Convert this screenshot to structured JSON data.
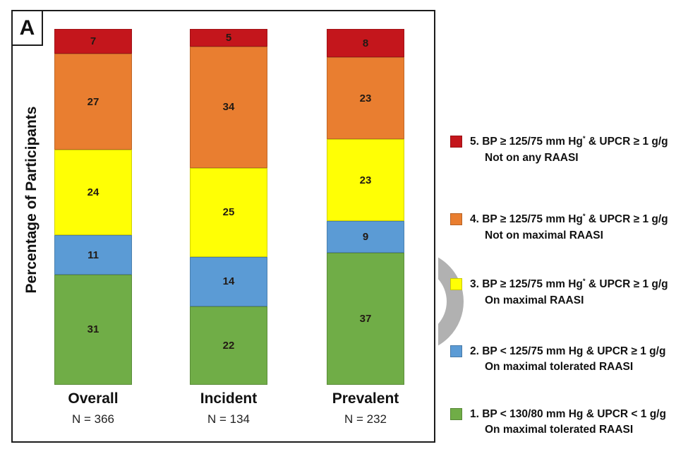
{
  "panel_label": "A",
  "ylabel": "Percentage of Participants",
  "colors": {
    "cat5_red": "#C4161C",
    "cat4_orange": "#E97E30",
    "cat3_yellow": "#FFFF05",
    "cat2_blue": "#5B9BD5",
    "cat1_green": "#70AD47",
    "watermark_gray": "#B1B1B1",
    "frame_black": "#1c1c1c"
  },
  "chart_data": {
    "type": "bar",
    "stacked": true,
    "categories": [
      "Overall",
      "Incident",
      "Prevalent"
    ],
    "category_sublabels": [
      "N = 366",
      "N = 134",
      "N = 232"
    ],
    "ylabel": "Percentage of Participants",
    "ylim": [
      0,
      100
    ],
    "grid": false,
    "legend_position": "right",
    "series_order_note": "listed top-to-bottom as stacked in each bar",
    "series": [
      {
        "name": "5. BP ≥ 125/75 mm Hg* & UPCR ≥ 1 g/g — Not on any RAASI",
        "color": "#C4161C",
        "values": [
          7,
          5,
          8
        ]
      },
      {
        "name": "4. BP ≥ 125/75 mm Hg* & UPCR ≥ 1 g/g — Not on maximal RAASI",
        "color": "#E97E30",
        "values": [
          27,
          34,
          23
        ]
      },
      {
        "name": "3. BP ≥ 125/75 mm Hg* & UPCR ≥ 1 g/g — On maximal RAASI",
        "color": "#FFFF05",
        "values": [
          24,
          25,
          23
        ]
      },
      {
        "name": "2. BP < 125/75 mm Hg & UPCR ≥ 1 g/g — On maximal tolerated RAASI",
        "color": "#5B9BD5",
        "values": [
          11,
          14,
          9
        ]
      },
      {
        "name": "1. BP < 130/80 mm Hg & UPCR < 1 g/g — On maximal tolerated RAASI",
        "color": "#70AD47",
        "values": [
          31,
          22,
          37
        ]
      }
    ]
  },
  "legend": {
    "items": [
      {
        "color": "#C4161C",
        "line1_pre": "5. BP ≥ 125/75 mm Hg",
        "line1_sup": "*",
        "line1_post": " & UPCR ≥ 1 g/g",
        "line2": "Not on any RAASI"
      },
      {
        "color": "#E97E30",
        "line1_pre": "4. BP ≥ 125/75 mm Hg",
        "line1_sup": "*",
        "line1_post": " & UPCR ≥ 1 g/g",
        "line2": "Not on maximal RAASI"
      },
      {
        "color": "#FFFF05",
        "line1_pre": "3. BP ≥ 125/75 mm Hg",
        "line1_sup": "*",
        "line1_post": " & UPCR ≥ 1 g/g",
        "line2": "On maximal RAASI"
      },
      {
        "color": "#5B9BD5",
        "line1_pre": "2. BP < 125/75 mm Hg & UPCR ≥ 1 g/g",
        "line1_sup": "",
        "line1_post": "",
        "line2": "On maximal tolerated RAASI"
      },
      {
        "color": "#70AD47",
        "line1_pre": "1. BP < 130/80 mm Hg & UPCR < 1 g/g",
        "line1_sup": "",
        "line1_post": "",
        "line2": "On maximal tolerated RAASI"
      }
    ]
  }
}
